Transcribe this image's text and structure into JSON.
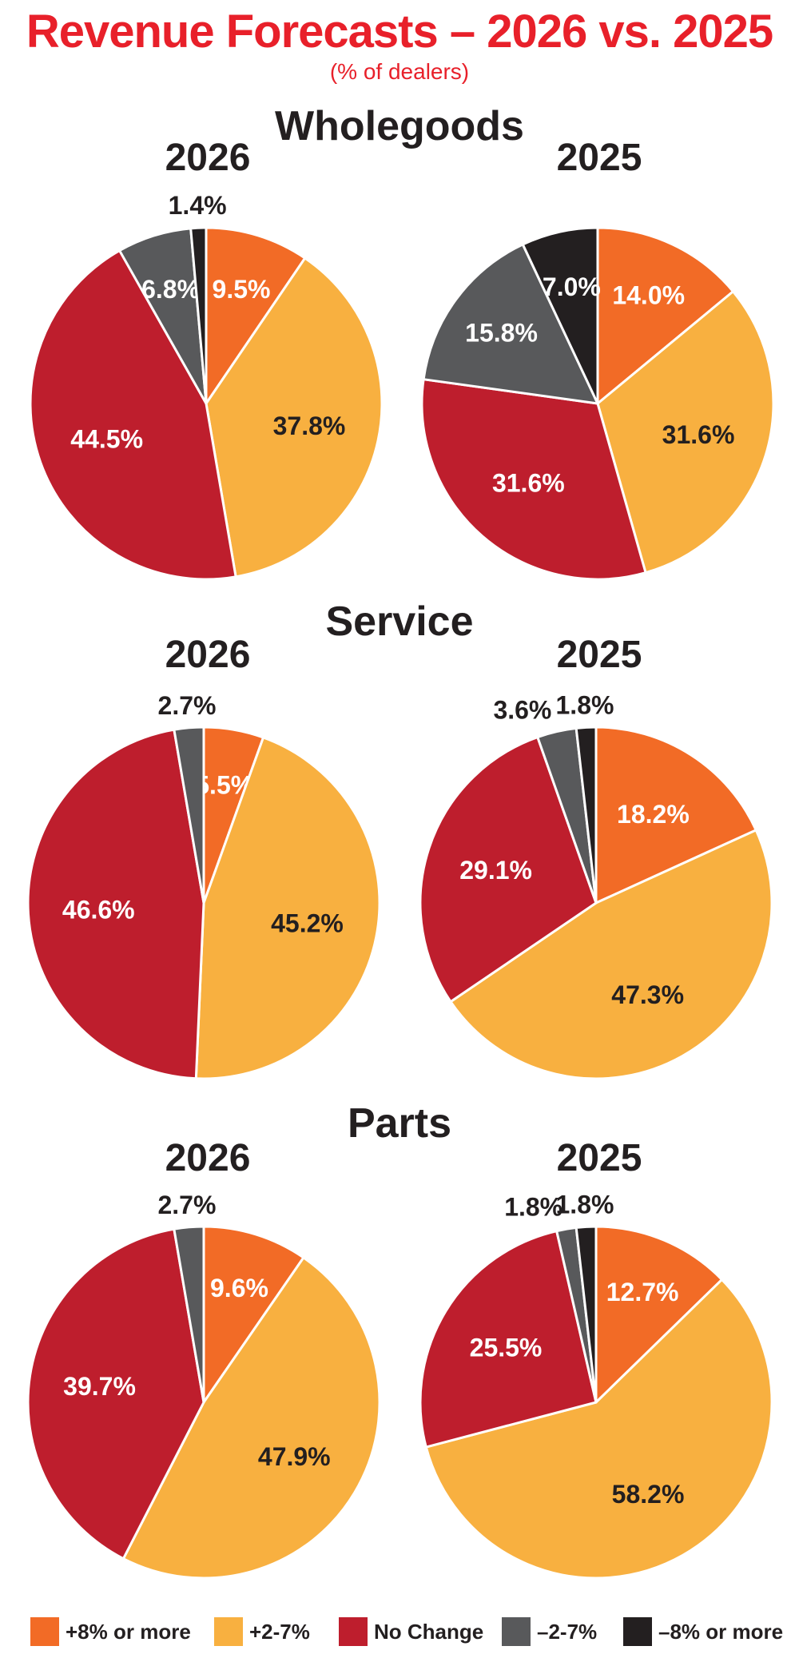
{
  "title": "Revenue Forecasts – 2026 vs. 2025",
  "subtitle": "(% of dealers)",
  "colors": {
    "title": "#e8202a",
    "plus8": "#f26b26",
    "plus2_7": "#f8b040",
    "no_change": "#be1e2d",
    "minus2_7": "#58595b",
    "minus8": "#231f20"
  },
  "legend": [
    {
      "label": "+8% or more",
      "color": "#f26b26"
    },
    {
      "label": "+2-7%",
      "color": "#f8b040"
    },
    {
      "label": "No Change",
      "color": "#be1e2d"
    },
    {
      "label": "–2-7%",
      "color": "#58595b"
    },
    {
      "label": "–8% or more",
      "color": "#231f20"
    }
  ],
  "chart_data": [
    {
      "type": "pie",
      "section": "Wholegoods",
      "year": "2026",
      "categories": [
        "+8% or more",
        "+2-7%",
        "No Change",
        "–2-7%",
        "–8% or more"
      ],
      "values": [
        9.5,
        37.8,
        44.5,
        6.8,
        1.4
      ],
      "labels": [
        "9.5%",
        "37.8%",
        "44.5%",
        "6.8%",
        "1.4%"
      ]
    },
    {
      "type": "pie",
      "section": "Wholegoods",
      "year": "2025",
      "categories": [
        "+8% or more",
        "+2-7%",
        "No Change",
        "–2-7%",
        "–8% or more"
      ],
      "values": [
        14.0,
        31.6,
        31.6,
        15.8,
        7.0
      ],
      "labels": [
        "14.0%",
        "31.6%",
        "31.6%",
        "15.8%",
        "7.0%"
      ]
    },
    {
      "type": "pie",
      "section": "Service",
      "year": "2026",
      "categories": [
        "+8% or more",
        "+2-7%",
        "No Change",
        "–2-7%"
      ],
      "values": [
        5.5,
        45.2,
        46.6,
        2.7
      ],
      "labels": [
        "5.5%",
        "45.2%",
        "46.6%",
        "2.7%"
      ]
    },
    {
      "type": "pie",
      "section": "Service",
      "year": "2025",
      "categories": [
        "+8% or more",
        "+2-7%",
        "No Change",
        "–2-7%",
        "–8% or more"
      ],
      "values": [
        18.2,
        47.3,
        29.1,
        3.6,
        1.8
      ],
      "labels": [
        "18.2%",
        "47.3%",
        "29.1%",
        "3.6%",
        "1.8%"
      ]
    },
    {
      "type": "pie",
      "section": "Parts",
      "year": "2026",
      "categories": [
        "+8% or more",
        "+2-7%",
        "No Change",
        "–2-7%"
      ],
      "values": [
        9.6,
        47.9,
        39.7,
        2.7
      ],
      "labels": [
        "9.6%",
        "47.9%",
        "39.7%",
        "2.7%"
      ]
    },
    {
      "type": "pie",
      "section": "Parts",
      "year": "2025",
      "categories": [
        "+8% or more",
        "+2-7%",
        "No Change",
        "–2-7%",
        "–8% or more"
      ],
      "values": [
        12.7,
        58.2,
        25.5,
        1.8,
        1.8
      ],
      "labels": [
        "12.7%",
        "58.2%",
        "25.5%",
        "1.8%",
        "1.8%"
      ]
    }
  ],
  "sections": [
    "Wholegoods",
    "Service",
    "Parts"
  ],
  "years": [
    "2026",
    "2025"
  ]
}
